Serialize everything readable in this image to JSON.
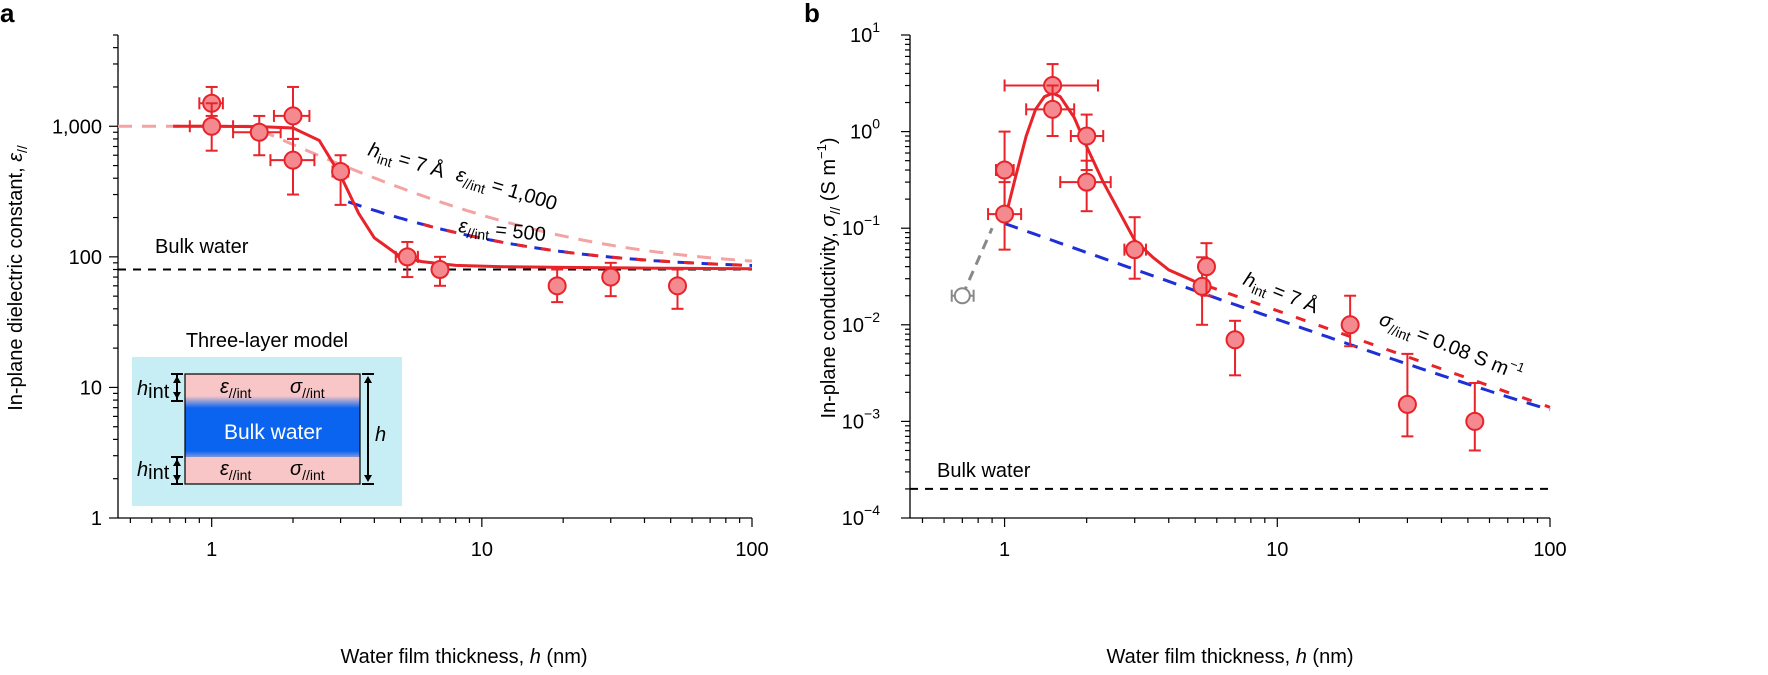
{
  "chart_data": [
    {
      "panel": "a",
      "type": "scatter",
      "xscale": "log",
      "yscale": "log",
      "xlim": [
        0.45,
        100
      ],
      "ylim": [
        1,
        5000
      ],
      "xticks": [
        1,
        10,
        100
      ],
      "xtick_labels": [
        "1",
        "10",
        "100"
      ],
      "yticks": [
        1,
        10,
        100,
        1000
      ],
      "ytick_labels": [
        "1",
        "10",
        "100",
        "1,000"
      ],
      "xlabel_parts": [
        "Water film thickness, ",
        "h",
        " (nm)"
      ],
      "ylabel_parts": [
        "In-plane dielectric constant, ",
        "ε",
        "//"
      ],
      "points": [
        {
          "x": 1.0,
          "y": 1500,
          "ylow": 1200,
          "yhigh": 2000,
          "xlow": 0.9,
          "xhigh": 1.1
        },
        {
          "x": 1.0,
          "y": 1000,
          "ylow": 650,
          "yhigh": 1500,
          "xlow": 0.83,
          "xhigh": 1.2
        },
        {
          "x": 1.5,
          "y": 900,
          "ylow": 600,
          "yhigh": 1200,
          "xlow": 1.2,
          "xhigh": 1.8
        },
        {
          "x": 2.0,
          "y": 1200,
          "ylow": 800,
          "yhigh": 2000,
          "xlow": 1.7,
          "xhigh": 2.3
        },
        {
          "x": 2.0,
          "y": 550,
          "ylow": 300,
          "yhigh": 800,
          "xlow": 1.65,
          "xhigh": 2.4
        },
        {
          "x": 3.0,
          "y": 450,
          "ylow": 250,
          "yhigh": 600,
          "xlow": 2.8,
          "xhigh": 3.2
        },
        {
          "x": 5.3,
          "y": 100,
          "ylow": 70,
          "yhigh": 130,
          "xlow": 4.8,
          "xhigh": 5.8
        },
        {
          "x": 7.0,
          "y": 80,
          "ylow": 60,
          "yhigh": 100
        },
        {
          "x": 19.0,
          "y": 60,
          "ylow": 45,
          "yhigh": 80
        },
        {
          "x": 30.0,
          "y": 70,
          "ylow": 50,
          "yhigh": 90
        },
        {
          "x": 53.0,
          "y": 60,
          "ylow": 40,
          "yhigh": 80
        }
      ],
      "model": {
        "bulk": 80,
        "h_int_nm": 0.7
      },
      "curves": [
        {
          "name": "eps_int 1000 (pink dashed)",
          "eps_int": 1000,
          "xmin": 0.45,
          "xmax": 100,
          "color": "#f4a3a3",
          "style": "dashed"
        },
        {
          "name": "eps_int 500 (blue dashed)",
          "eps_int": 500,
          "xmin": 3.2,
          "xmax": 100,
          "color": "#1f2fd6",
          "style": "dashed"
        },
        {
          "name": "fit (red solid)",
          "xmin": 0.72,
          "xmax": 100,
          "color": "#e8232a",
          "style": "solid",
          "points": [
            [
              0.72,
              1000
            ],
            [
              1,
              1000
            ],
            [
              1.5,
              995
            ],
            [
              2,
              970
            ],
            [
              2.5,
              780
            ],
            [
              3,
              420
            ],
            [
              3.5,
              215
            ],
            [
              4,
              140
            ],
            [
              5,
              100
            ],
            [
              6,
              92
            ],
            [
              8,
              86
            ],
            [
              12,
              84
            ],
            [
              20,
              83
            ],
            [
              40,
              82
            ],
            [
              100,
              81
            ]
          ]
        }
      ],
      "reference_lines": [
        {
          "label": "Bulk water",
          "y": 80
        }
      ],
      "annotations": {
        "hint_prefix": "h",
        "hint_sub": "int",
        "hint_rest": " = 7 Å",
        "eps_symbol": "ε",
        "eps_sub": "//int",
        "eps_1000": " = 1,000",
        "eps_500": " = 500"
      },
      "inset": {
        "title": "Three-layer model",
        "core_label": "Bulk water",
        "hint_label_prefix": "h",
        "hint_label_sub": "int",
        "h_label": "h",
        "eps_symbol": "ε",
        "sigma_symbol": "σ",
        "layer_sub": "//int",
        "colors": {
          "background": "#c6eef4",
          "interface": "#f8c6c6",
          "core": "#0a64f0"
        }
      },
      "colors": {
        "marker_fill": "#f48a8f",
        "marker_edge": "#e8232a"
      }
    },
    {
      "panel": "b",
      "type": "scatter",
      "xscale": "log",
      "yscale": "log",
      "xlim": [
        0.45,
        100
      ],
      "ylim": [
        0.0001,
        10
      ],
      "xticks": [
        1,
        10,
        100
      ],
      "xtick_labels": [
        "1",
        "10",
        "100"
      ],
      "yticks": [
        0.0001,
        0.001,
        0.01,
        0.1,
        1,
        10
      ],
      "ytick_labels": [
        [
          "10",
          "−4"
        ],
        [
          "10",
          "−3"
        ],
        [
          "10",
          "−2"
        ],
        [
          "10",
          "−1"
        ],
        [
          "10",
          "0"
        ],
        [
          "10",
          "1"
        ]
      ],
      "xlabel_parts": [
        "Water film thickness, ",
        "h",
        " (nm)"
      ],
      "ylabel_parts": [
        "In-plane conductivity, ",
        "σ",
        "//",
        " (S m",
        "−1",
        ")"
      ],
      "points": [
        {
          "x": 1.0,
          "y": 0.4,
          "ylow": 0.15,
          "yhigh": 1.0,
          "xlow": 0.93,
          "xhigh": 1.08
        },
        {
          "x": 1.0,
          "y": 0.14,
          "ylow": 0.06,
          "yhigh": 0.3,
          "xlow": 0.87,
          "xhigh": 1.15
        },
        {
          "x": 1.5,
          "y": 3.0,
          "ylow": 1.5,
          "yhigh": 5.0,
          "xlow": 1.0,
          "xhigh": 2.2
        },
        {
          "x": 1.5,
          "y": 1.7,
          "ylow": 0.9,
          "yhigh": 3.0,
          "xlow": 1.2,
          "xhigh": 1.8
        },
        {
          "x": 2.0,
          "y": 0.9,
          "ylow": 0.4,
          "yhigh": 1.5,
          "xlow": 1.75,
          "xhigh": 2.3
        },
        {
          "x": 2.0,
          "y": 0.3,
          "ylow": 0.15,
          "yhigh": 0.5,
          "xlow": 1.6,
          "xhigh": 2.45
        },
        {
          "x": 3.0,
          "y": 0.06,
          "ylow": 0.03,
          "yhigh": 0.13,
          "xlow": 2.75,
          "xhigh": 3.3
        },
        {
          "x": 5.3,
          "y": 0.025,
          "ylow": 0.01,
          "yhigh": 0.05
        },
        {
          "x": 5.5,
          "y": 0.04,
          "ylow": 0.02,
          "yhigh": 0.07
        },
        {
          "x": 7.0,
          "y": 0.007,
          "ylow": 0.003,
          "yhigh": 0.011
        },
        {
          "x": 18.5,
          "y": 0.01,
          "ylow": 0.006,
          "yhigh": 0.02
        },
        {
          "x": 30.0,
          "y": 0.0015,
          "ylow": 0.0007,
          "yhigh": 0.005
        },
        {
          "x": 53.0,
          "y": 0.001,
          "ylow": 0.0005,
          "yhigh": 0.0025
        }
      ],
      "outlier": {
        "x": 0.7,
        "y": 0.02,
        "xlow": 0.64,
        "xhigh": 0.77
      },
      "model": {
        "bulk": 0.0002,
        "h_int_nm": 0.7,
        "sigma_int": 0.08
      },
      "curves": [
        {
          "name": "sigma_int 0.08 (blue dashed)",
          "xmin": 1.0,
          "xmax": 100,
          "color": "#1f2fd6",
          "style": "dashed"
        },
        {
          "name": "fit (red solid)",
          "xmin": 1.0,
          "xmax": 100,
          "color": "#e8232a",
          "style": "solid",
          "points": [
            [
              1,
              0.12
            ],
            [
              1.1,
              0.35
            ],
            [
              1.2,
              0.9
            ],
            [
              1.3,
              1.7
            ],
            [
              1.4,
              2.3
            ],
            [
              1.5,
              2.5
            ],
            [
              1.6,
              2.3
            ],
            [
              1.8,
              1.4
            ],
            [
              2,
              0.7
            ],
            [
              2.3,
              0.3
            ],
            [
              2.7,
              0.13
            ],
            [
              3,
              0.075
            ],
            [
              3.5,
              0.05
            ],
            [
              4,
              0.037
            ],
            [
              5,
              0.028
            ],
            [
              6,
              0.0233
            ],
            [
              8,
              0.0175
            ],
            [
              10,
              0.014
            ],
            [
              20,
              0.007
            ],
            [
              50,
              0.0028
            ],
            [
              100,
              0.0014
            ]
          ]
        },
        {
          "name": "outlier link (grey dashed)",
          "color": "#888888",
          "style": "dashed",
          "points": [
            [
              0.7,
              0.02
            ],
            [
              0.9,
              0.1
            ]
          ]
        }
      ],
      "reference_lines": [
        {
          "label": "Bulk water",
          "y": 0.0002
        }
      ],
      "annotations": {
        "hint_prefix": "h",
        "hint_sub": "int",
        "hint_rest": " = 7 Å",
        "sigma_symbol": "σ",
        "sigma_sub": "//int",
        "sigma_rest": " = 0.08 S m",
        "sigma_exp": "−1"
      },
      "colors": {
        "marker_fill": "#f48a8f",
        "marker_edge": "#e8232a",
        "outlier_edge": "#888888"
      }
    }
  ]
}
